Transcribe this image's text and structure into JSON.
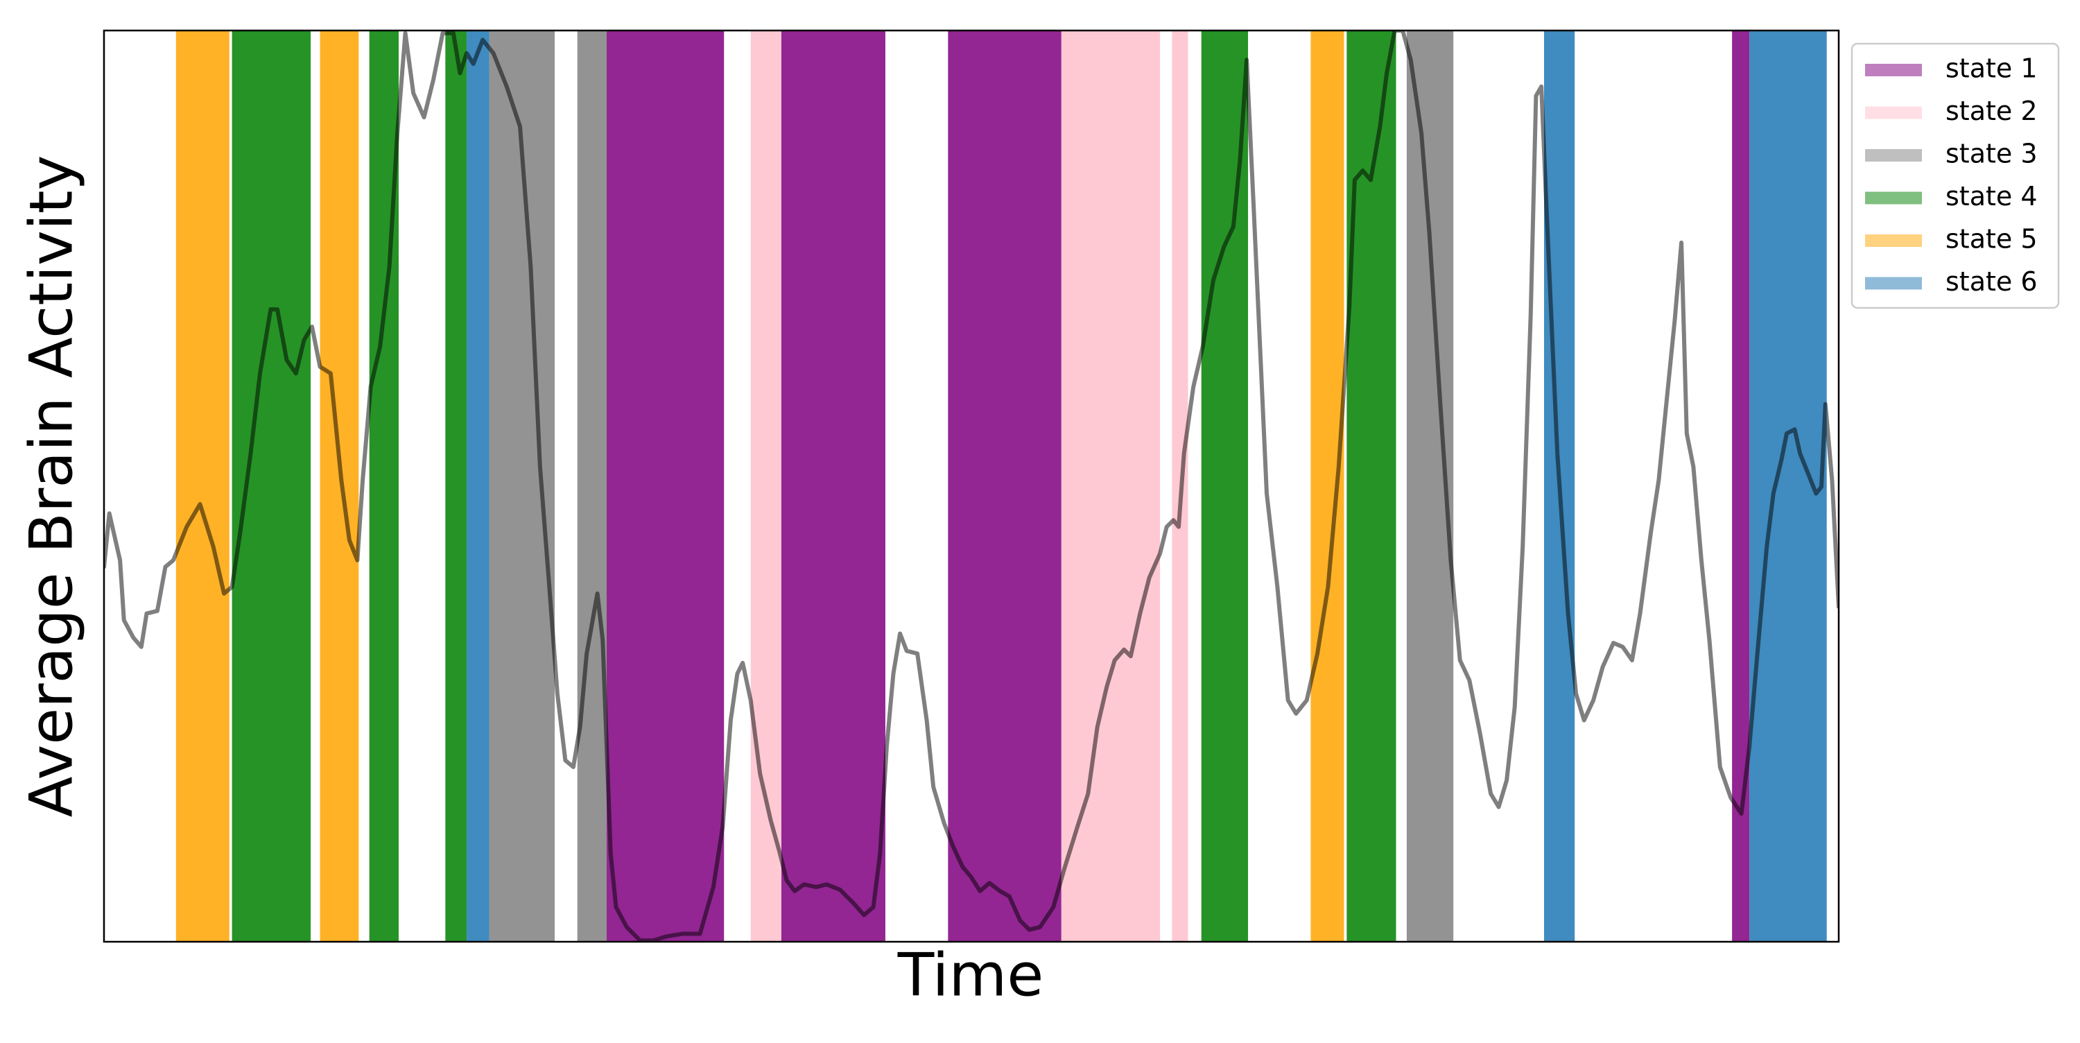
{
  "chart_data": {
    "type": "line",
    "xlabel": "Time",
    "ylabel": "Average Brain Activity",
    "xlim": [
      0,
      1301
    ],
    "ylim": [
      0,
      683
    ],
    "line_color": "#000000",
    "line_opacity": 0.5,
    "legend": "outside upper right",
    "x": [
      0,
      4,
      12,
      15,
      22,
      28,
      32,
      40,
      46,
      52,
      62,
      72,
      82,
      90,
      96,
      102,
      110,
      117,
      125,
      130,
      137,
      144,
      150,
      156,
      162,
      170,
      178,
      184,
      190,
      194,
      200,
      207,
      214,
      220,
      226,
      232,
      240,
      247,
      254,
      262,
      267,
      272,
      277,
      284,
      292,
      302,
      312,
      320,
      327,
      334,
      340,
      346,
      352,
      357,
      362,
      370,
      374,
      380,
      384,
      392,
      402,
      412,
      422,
      434,
      447,
      457,
      464,
      470,
      475,
      479,
      485,
      492,
      500,
      507,
      512,
      518,
      525,
      534,
      542,
      552,
      562,
      570,
      577,
      582,
      587,
      592,
      597,
      602,
      610,
      617,
      622,
      630,
      637,
      644,
      650,
      657,
      664,
      672,
      679,
      687,
      694,
      702,
      712,
      720,
      730,
      738,
      745,
      752,
      758,
      765,
      770,
      777,
      784,
      792,
      797,
      802,
      806,
      810,
      817,
      824,
      832,
      840,
      847,
      852,
      857,
      862,
      872,
      880,
      888,
      894,
      902,
      910,
      918,
      926,
      934,
      938,
      944,
      950,
      957,
      962,
      968,
      974,
      980,
      988,
      994,
      1002,
      1010,
      1017,
      1024,
      1032,
      1040,
      1046,
      1052,
      1058,
      1064,
      1070,
      1074,
      1078,
      1082,
      1090,
      1098,
      1104,
      1110,
      1117,
      1124,
      1132,
      1139,
      1146,
      1152,
      1160,
      1166,
      1172,
      1178,
      1183,
      1187,
      1192,
      1198,
      1204,
      1212,
      1220,
      1228,
      1234,
      1240,
      1247,
      1252,
      1258,
      1262,
      1268,
      1272,
      1278,
      1284,
      1288,
      1291,
      1296,
      1301
    ],
    "values": [
      281,
      321,
      286,
      241,
      228,
      221,
      246,
      248,
      281,
      286,
      311,
      328,
      296,
      261,
      266,
      306,
      366,
      426,
      474,
      474,
      436,
      426,
      451,
      461,
      431,
      426,
      346,
      301,
      286,
      346,
      416,
      446,
      506,
      606,
      681,
      636,
      618,
      646,
      681,
      681,
      651,
      666,
      658,
      676,
      666,
      641,
      611,
      506,
      356,
      266,
      186,
      136,
      131,
      161,
      216,
      261,
      226,
      66,
      26,
      11,
      1,
      1,
      4,
      6,
      6,
      41,
      86,
      166,
      201,
      209,
      181,
      126,
      91,
      66,
      46,
      38,
      43,
      41,
      43,
      39,
      29,
      20,
      26,
      66,
      146,
      201,
      231,
      218,
      216,
      166,
      116,
      89,
      71,
      56,
      49,
      38,
      44,
      38,
      34,
      16,
      9,
      11,
      26,
      54,
      86,
      111,
      161,
      191,
      211,
      219,
      214,
      246,
      273,
      291,
      311,
      316,
      311,
      366,
      416,
      446,
      496,
      521,
      536,
      586,
      661,
      556,
      336,
      266,
      181,
      171,
      181,
      216,
      266,
      356,
      476,
      571,
      578,
      571,
      611,
      651,
      683,
      683,
      661,
      606,
      531,
      406,
      286,
      211,
      196,
      156,
      111,
      101,
      121,
      176,
      296,
      471,
      634,
      641,
      546,
      366,
      246,
      186,
      166,
      181,
      206,
      224,
      221,
      211,
      246,
      306,
      346,
      406,
      466,
      524,
      381,
      356,
      286,
      226,
      131,
      108,
      96,
      146,
      216,
      296,
      336,
      361,
      381,
      384,
      366,
      351,
      336,
      341,
      403,
      346,
      251
    ],
    "states": [
      {
        "name": "state 1",
        "color": "#800080",
        "spans": [
          [
            377,
            465
          ],
          [
            508,
            586
          ],
          [
            633,
            718
          ],
          [
            1221,
            1234
          ]
        ]
      },
      {
        "name": "state 2",
        "color": "#ffc0cb",
        "spans": [
          [
            485,
            508
          ],
          [
            718,
            792
          ],
          [
            801,
            813
          ]
        ]
      },
      {
        "name": "state 3",
        "color": "#808080",
        "spans": [
          [
            289,
            338
          ],
          [
            355,
            377
          ],
          [
            977,
            1012
          ]
        ]
      },
      {
        "name": "state 4",
        "color": "#008000",
        "spans": [
          [
            96,
            155
          ],
          [
            199,
            221
          ],
          [
            256,
            272
          ],
          [
            823,
            858
          ],
          [
            932,
            969
          ]
        ]
      },
      {
        "name": "state 5",
        "color": "#ffa500",
        "spans": [
          [
            54,
            94
          ],
          [
            162,
            191
          ],
          [
            905,
            930
          ]
        ]
      },
      {
        "name": "state 6",
        "color": "#1f77b4",
        "spans": [
          [
            272,
            289
          ],
          [
            1080,
            1103
          ],
          [
            1234,
            1292
          ]
        ]
      }
    ]
  }
}
